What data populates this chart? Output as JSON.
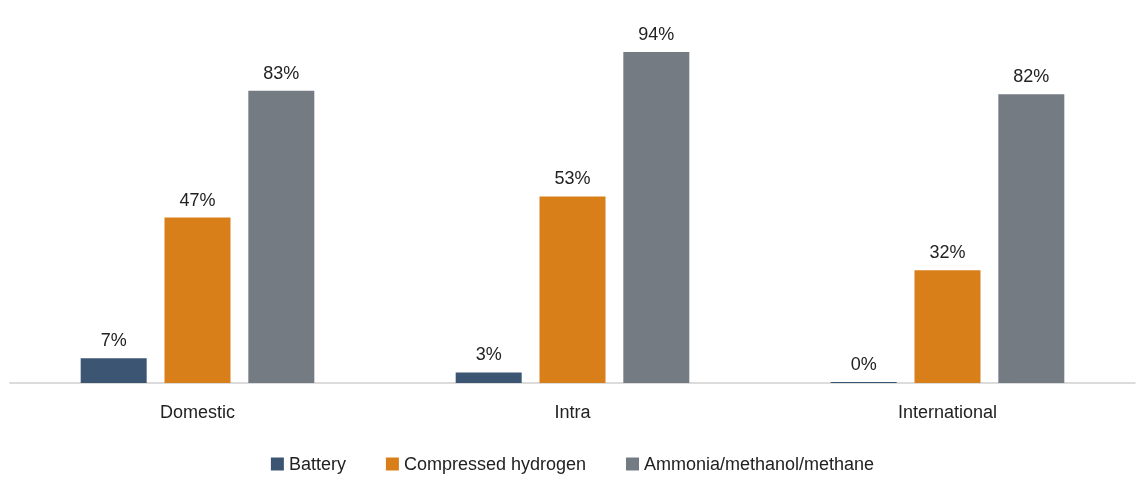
{
  "chart_data": {
    "type": "bar",
    "categories": [
      "Domestic",
      "Intra",
      "International"
    ],
    "series": [
      {
        "name": "Battery",
        "color": "#3b5573",
        "values": [
          7,
          3,
          0
        ],
        "value_labels": [
          "7%",
          "3%",
          "0%"
        ]
      },
      {
        "name": "Compressed hydrogen",
        "color": "#d97f1a",
        "values": [
          47,
          53,
          32
        ],
        "value_labels": [
          "47%",
          "53%",
          "32%"
        ]
      },
      {
        "name": "Ammonia/methanol/methane",
        "color": "#747b82",
        "values": [
          83,
          94,
          82
        ],
        "value_labels": [
          "83%",
          "94%",
          "82%"
        ]
      }
    ],
    "legend": "bottom"
  }
}
